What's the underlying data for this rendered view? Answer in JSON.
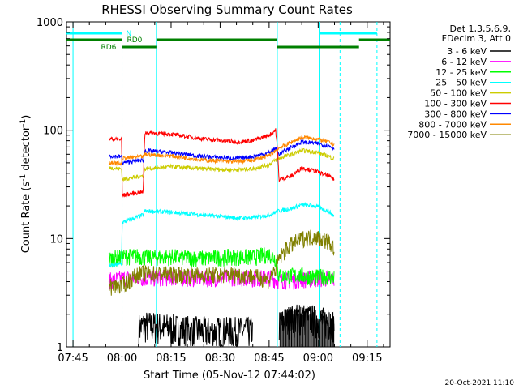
{
  "chart_data": {
    "type": "line",
    "title": "RHESSI Observing Summary Count Rates",
    "xlabel": "Start Time (05-Nov-12 07:44:02)",
    "ylabel_main": "Count Rate (s",
    "ylabel_sup1": "-1",
    "ylabel_mid": " detector",
    "ylabel_sup2": "-1",
    "ylabel_end": ")",
    "y_scale": "log",
    "ylim": [
      1,
      1000
    ],
    "xlim_minutes": [
      -2,
      97
    ],
    "x_ticks": [
      {
        "minute": 0,
        "label": "07:45"
      },
      {
        "minute": 15,
        "label": "08:00"
      },
      {
        "minute": 30,
        "label": "08:15"
      },
      {
        "minute": 45,
        "label": "08:30"
      },
      {
        "minute": 60,
        "label": "08:45"
      },
      {
        "minute": 75,
        "label": "09:00"
      },
      {
        "minute": 90,
        "label": "09:15"
      }
    ],
    "y_ticks": [
      {
        "value": 1,
        "label": "1"
      },
      {
        "value": 10,
        "label": "10"
      },
      {
        "value": 100,
        "label": "100"
      },
      {
        "value": 1000,
        "label": "1000"
      }
    ],
    "legend_header": [
      "Det 1,3,5,6,9,",
      "FDecim 3, Att 0"
    ],
    "legend_position": "right",
    "series": [
      {
        "name": "3 - 6 keV",
        "color": "#000000",
        "x": [
          11,
          13,
          15,
          20,
          22,
          30,
          40,
          55,
          62,
          63,
          66,
          70,
          74,
          78,
          80
        ],
        "y": [
          null,
          null,
          null,
          1.5,
          1.6,
          1.5,
          1.4,
          1.4,
          null,
          1.6,
          1.8,
          1.9,
          1.8,
          1.7,
          1.6
        ]
      },
      {
        "name": "6 - 12 keV",
        "color": "#ff00ff",
        "x": [
          11,
          15,
          20,
          22,
          30,
          40,
          50,
          55,
          60,
          62,
          63,
          70,
          78,
          80
        ],
        "y": [
          4.1,
          4.3,
          4.4,
          4.3,
          4.4,
          4.3,
          4.4,
          4.3,
          4.4,
          4.2,
          4.1,
          4.2,
          4.3,
          4.2
        ]
      },
      {
        "name": "12 - 25 keV",
        "color": "#00ff00",
        "x": [
          11,
          15,
          20,
          22,
          30,
          40,
          50,
          55,
          60,
          62,
          63,
          70,
          74,
          78,
          80
        ],
        "y": [
          6.5,
          6.8,
          6.9,
          6.7,
          6.8,
          6.6,
          6.8,
          6.7,
          7.2,
          6.5,
          4.5,
          4.6,
          4.4,
          4.5,
          4.4
        ]
      },
      {
        "name": "25 - 50 keV",
        "color": "#00ffff",
        "x": [
          11,
          14.9,
          15,
          21.5,
          22,
          30,
          40,
          50,
          55,
          60,
          62,
          63,
          67,
          70,
          74,
          78,
          80
        ],
        "y": [
          5.6,
          5.8,
          14,
          16.5,
          18,
          17.5,
          16.5,
          15.5,
          15.5,
          16.5,
          17.5,
          18,
          19,
          20.5,
          20,
          18,
          16
        ]
      },
      {
        "name": "50 - 100 keV",
        "color": "#cccc00",
        "x": [
          11,
          14.9,
          15,
          21.5,
          22,
          30,
          40,
          50,
          55,
          60,
          62,
          63,
          67,
          70,
          74,
          78,
          80
        ],
        "y": [
          45,
          44,
          35,
          38,
          44,
          46,
          44,
          43,
          44,
          48,
          53,
          55,
          60,
          65,
          63,
          58,
          54
        ]
      },
      {
        "name": "100 - 300 keV",
        "color": "#ff0000",
        "x": [
          11,
          14.9,
          15,
          21.5,
          22,
          30,
          40,
          50,
          55,
          60,
          62,
          63,
          67,
          70,
          74,
          78,
          80
        ],
        "y": [
          83,
          82,
          25,
          27,
          95,
          92,
          83,
          78,
          80,
          90,
          100,
          35,
          38,
          45,
          42,
          38,
          35
        ]
      },
      {
        "name": "300 - 800 keV",
        "color": "#0000ff",
        "x": [
          11,
          14.9,
          15,
          21.5,
          22,
          30,
          40,
          50,
          55,
          60,
          62,
          63,
          67,
          70,
          74,
          78,
          80
        ],
        "y": [
          58,
          57,
          50,
          53,
          65,
          62,
          57,
          55,
          57,
          62,
          68,
          60,
          70,
          78,
          76,
          72,
          68
        ]
      },
      {
        "name": "800 - 7000 keV",
        "color": "#ff8800",
        "x": [
          11,
          14.9,
          15,
          21.5,
          22,
          30,
          40,
          50,
          55,
          60,
          62,
          63,
          67,
          70,
          74,
          78,
          80
        ],
        "y": [
          50,
          49,
          55,
          57,
          60,
          58,
          53,
          51,
          53,
          58,
          65,
          68,
          78,
          86,
          84,
          78,
          74
        ]
      },
      {
        "name": "7000 - 15000 keV",
        "color": "#808000",
        "x": [
          11,
          15,
          20,
          22,
          30,
          40,
          50,
          55,
          60,
          62,
          63,
          66,
          70,
          74,
          78,
          80
        ],
        "y": [
          3.6,
          3.7,
          4.7,
          4.8,
          4.7,
          4.6,
          4.7,
          4.5,
          4.2,
          5.2,
          6.5,
          8.5,
          10,
          10.5,
          9.5,
          8
        ]
      }
    ],
    "night_intervals_minutes": [
      [
        -2,
        15
      ],
      [
        75.3,
        93
      ]
    ],
    "vertical_markers_minutes": [
      {
        "minute": 0,
        "style": "solid"
      },
      {
        "minute": 15,
        "style": "dashed"
      },
      {
        "minute": 25.5,
        "style": "solid"
      },
      {
        "minute": 62.5,
        "style": "solid"
      },
      {
        "minute": 75.3,
        "style": "solid"
      },
      {
        "minute": 81.7,
        "style": "dashed"
      },
      {
        "minute": 93,
        "style": "dashed"
      }
    ],
    "flags": [
      {
        "label": "N",
        "color": "#00ffff",
        "segments": [
          [
            -2,
            15
          ],
          [
            75.3,
            93
          ]
        ]
      },
      {
        "label": "RD0",
        "color": "#008000",
        "segments": [
          [
            -2,
            15
          ],
          [
            25.5,
            62.5
          ],
          [
            87.5,
            97
          ]
        ]
      },
      {
        "label": "RD6",
        "color": "#008000",
        "segments": [
          [
            15,
            25.5
          ],
          [
            62.5,
            87.5
          ]
        ]
      }
    ],
    "grid": false
  },
  "timestamp": "20-Oct-2021 11:10"
}
